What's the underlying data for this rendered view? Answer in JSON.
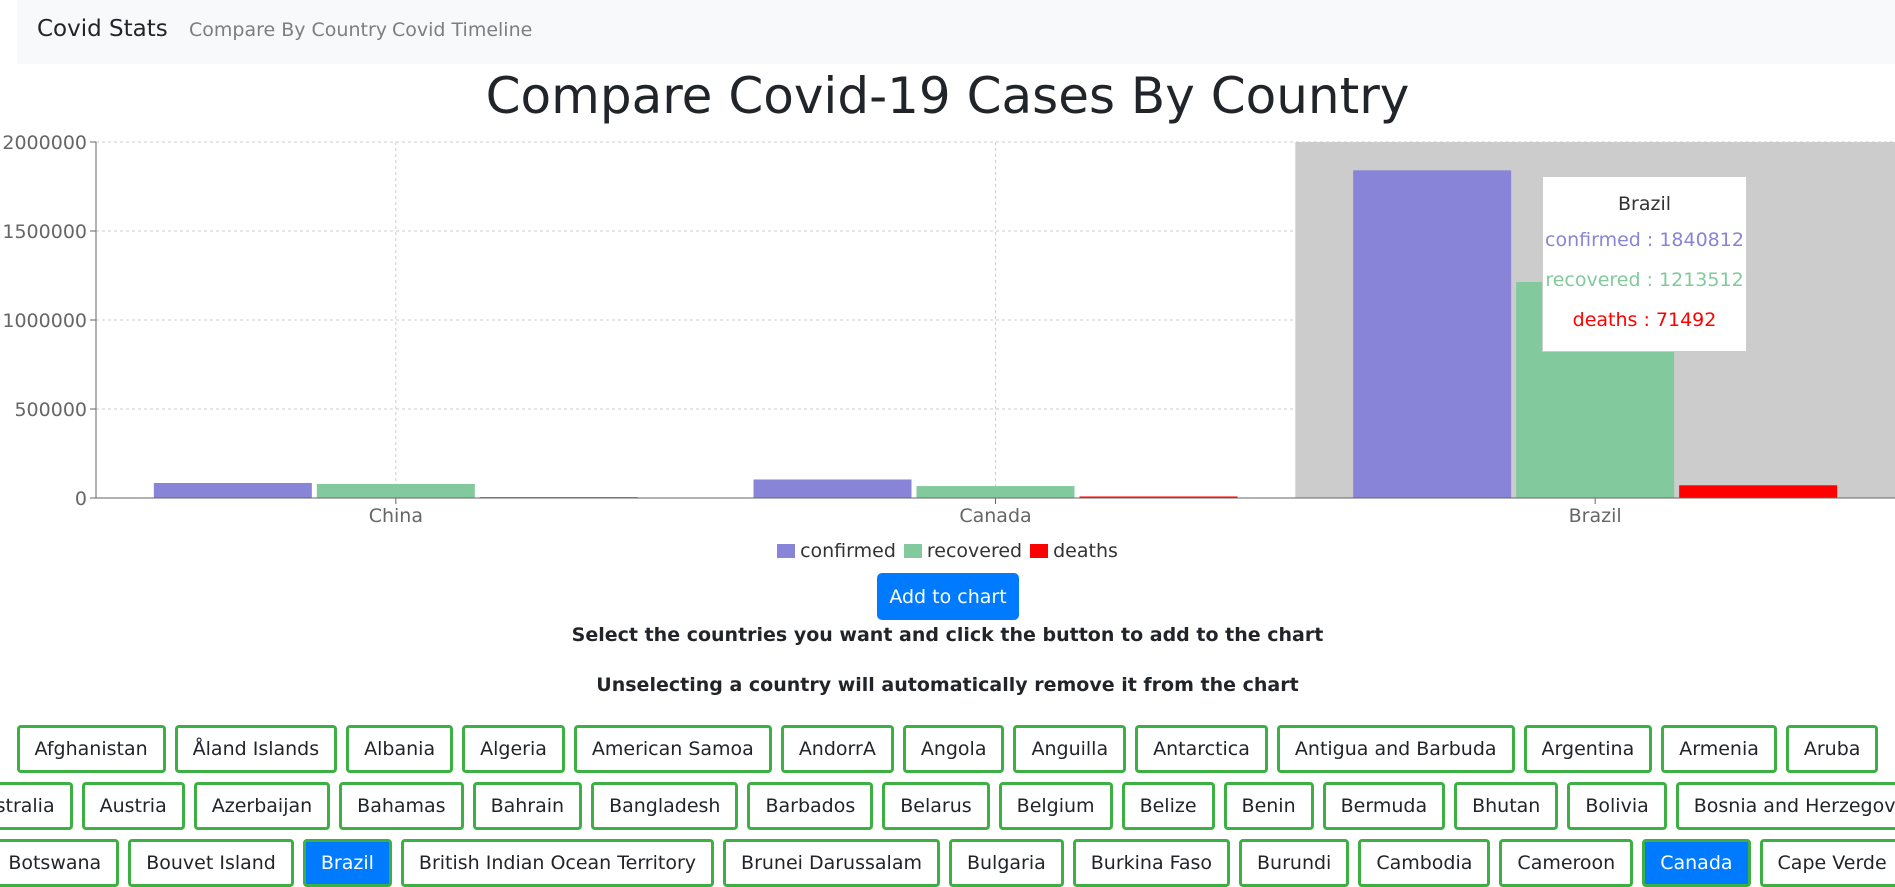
{
  "navbar": {
    "brand": "Covid Stats",
    "links": [
      "Compare By Country",
      "Covid Timeline"
    ]
  },
  "page_title": "Compare Covid-19 Cases By Country",
  "chart_data": {
    "type": "bar",
    "categories": [
      "China",
      "Canada",
      "Brazil"
    ],
    "series": [
      {
        "name": "confirmed",
        "values": [
          84400,
          104000,
          1840812
        ],
        "color": "#8884d8"
      },
      {
        "name": "recovered",
        "values": [
          79000,
          67000,
          1213512
        ],
        "color": "#82ca9d"
      },
      {
        "name": "deaths",
        "values": [
          4640,
          8600,
          71492
        ],
        "color": "#ff0000"
      }
    ],
    "y_ticks": [
      "0",
      "500000",
      "1000000",
      "1500000",
      "2000000"
    ],
    "ylim": [
      0,
      2000000
    ],
    "grid": true,
    "legend": "bottom",
    "highlighted_category": "Brazil"
  },
  "tooltip": {
    "title": "Brazil",
    "lines": [
      {
        "text": "confirmed : 1840812",
        "color": "#8884d8"
      },
      {
        "text": "recovered : 1213512",
        "color": "#82ca9d"
      },
      {
        "text": "deaths : 71492",
        "color": "#ff0000"
      }
    ]
  },
  "add_button_label": "Add to chart",
  "help_text_1": "Select the countries you want and click the button to add to the chart",
  "help_text_2": "Unselecting a country will automatically remove it from the chart",
  "countries": [
    [
      "Afghanistan",
      "Åland Islands",
      "Albania",
      "Algeria",
      "American Samoa",
      "AndorrA",
      "Angola",
      "Anguilla",
      "Antarctica",
      "Antigua and Barbuda",
      "Argentina",
      "Armenia",
      "Aruba"
    ],
    [
      "Australia",
      "Austria",
      "Azerbaijan",
      "Bahamas",
      "Bahrain",
      "Bangladesh",
      "Barbados",
      "Belarus",
      "Belgium",
      "Belize",
      "Benin",
      "Bermuda",
      "Bhutan",
      "Bolivia",
      "Bosnia and Herzegovina"
    ],
    [
      "Botswana",
      "Bouvet Island",
      "Brazil",
      "British Indian Ocean Territory",
      "Brunei Darussalam",
      "Bulgaria",
      "Burkina Faso",
      "Burundi",
      "Cambodia",
      "Cameroon",
      "Canada",
      "Cape Verde"
    ]
  ],
  "selected_countries": [
    "Brazil",
    "Canada"
  ]
}
